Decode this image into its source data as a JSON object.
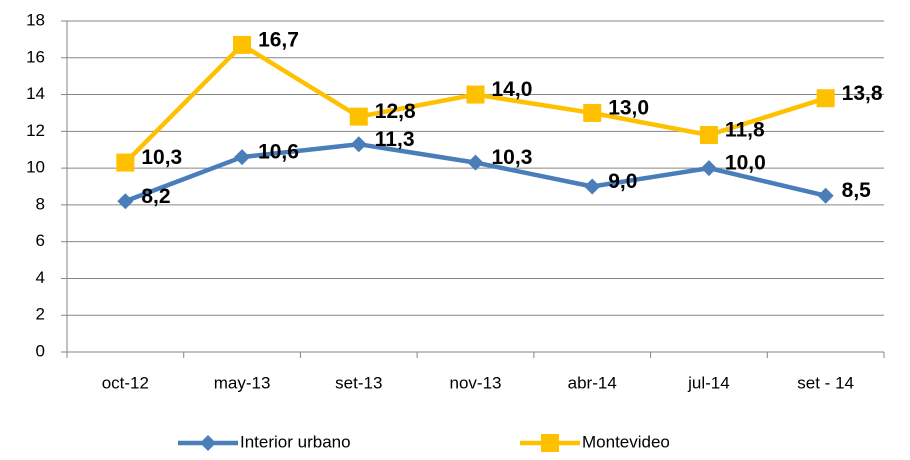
{
  "chart_data": {
    "type": "line",
    "categories": [
      "oct-12",
      "may-13",
      "set-13",
      "nov-13",
      "abr-14",
      "jul-14",
      "set - 14"
    ],
    "series": [
      {
        "name": "Interior urbano",
        "color": "#4a7ebb",
        "marker": "diamond",
        "label_color": "#1f497d",
        "values": [
          8.2,
          10.6,
          11.3,
          10.3,
          9.0,
          10.0,
          8.5
        ],
        "value_labels": [
          "8,2",
          "10,6",
          "11,3",
          "10,3",
          "9,0",
          "10,0",
          "8,5"
        ]
      },
      {
        "name": "Montevideo",
        "color": "#ffc000",
        "marker": "square",
        "label_color": "#e46c0a",
        "values": [
          10.3,
          16.7,
          12.8,
          14.0,
          13.0,
          11.8,
          13.8
        ],
        "value_labels": [
          "10,3",
          "16,7",
          "12,8",
          "14,0",
          "13,0",
          "11,8",
          "13,8"
        ]
      }
    ],
    "ylim": [
      0,
      18
    ],
    "yticks": [
      0,
      2,
      4,
      6,
      8,
      10,
      12,
      14,
      16,
      18
    ],
    "grid": true,
    "legend": "bottom"
  }
}
